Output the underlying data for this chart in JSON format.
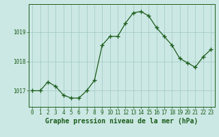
{
  "x": [
    0,
    1,
    2,
    3,
    4,
    5,
    6,
    7,
    8,
    9,
    10,
    11,
    12,
    13,
    14,
    15,
    16,
    17,
    18,
    19,
    20,
    21,
    22,
    23
  ],
  "y": [
    1017.0,
    1017.0,
    1017.3,
    1017.15,
    1016.85,
    1016.75,
    1016.75,
    1017.0,
    1017.35,
    1018.55,
    1018.85,
    1018.85,
    1019.3,
    1019.65,
    1019.7,
    1019.55,
    1019.15,
    1018.85,
    1018.55,
    1018.1,
    1017.95,
    1017.8,
    1018.15,
    1018.4
  ],
  "line_color": "#1a5c1a",
  "marker_color": "#1a5c1a",
  "bg_color": "#cce8e4",
  "grid_color": "#9ec8c2",
  "axis_color": "#1a5c1a",
  "label_color": "#1a5c1a",
  "xlabel": "Graphe pression niveau de la mer (hPa)",
  "yticks": [
    1017,
    1018,
    1019
  ],
  "ylim": [
    1016.45,
    1019.95
  ],
  "xlim": [
    -0.5,
    23.5
  ],
  "tick_fontsize": 5.5,
  "xlabel_fontsize": 7.0
}
